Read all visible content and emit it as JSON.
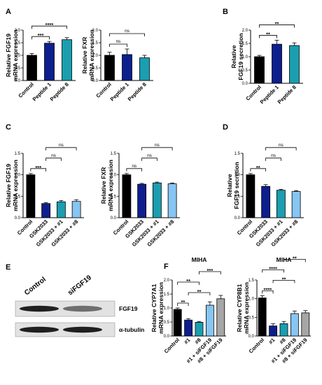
{
  "colors": {
    "Control": "#000000",
    "Peptide 1": "#0d1f8c",
    "Peptide 8": "#1a9eb0",
    "GSK2033": "#0d1f8c",
    "GSK2033 + #1": "#1a9eb0",
    "GSK2033 + #8": "#87c5f2",
    "#1": "#0d1f8c",
    "#8": "#1a9eb0",
    "#1 + siFGF19": "#87c5f2",
    "#8 + siFGF19": "#a6a6a6"
  },
  "chart_data": [
    {
      "id": "A1",
      "panel": "A",
      "type": "bar",
      "title": "",
      "ylabel": "Relative FGF19 mRNA expression",
      "categories": [
        "Control",
        "Peptide 1",
        "Peptide 8"
      ],
      "values": [
        1.0,
        1.48,
        1.62
      ],
      "errors": [
        0.07,
        0.07,
        0.08
      ],
      "ylim": [
        0,
        2.0
      ],
      "yticks": [
        "0.0",
        "0.5",
        "1.0",
        "1.5",
        "2.0"
      ],
      "brackets": [
        {
          "from": 0,
          "to": 1,
          "label": "***"
        },
        {
          "from": 0,
          "to": 2,
          "label": "****"
        }
      ]
    },
    {
      "id": "A2",
      "panel": "",
      "type": "bar",
      "title": "",
      "ylabel": "Relative FXR mRNA expression",
      "categories": [
        "Control",
        "Peptide 1",
        "Peptide 8"
      ],
      "values": [
        1.0,
        1.03,
        0.9
      ],
      "errors": [
        0.12,
        0.22,
        0.1
      ],
      "ylim": [
        0,
        2.0
      ],
      "yticks": [
        "0.0",
        "0.5",
        "1.0",
        "1.5",
        "2.0"
      ],
      "brackets": [
        {
          "from": 0,
          "to": 1,
          "label": "ns"
        },
        {
          "from": 0,
          "to": 2,
          "label": "ns"
        }
      ]
    },
    {
      "id": "B",
      "panel": "B",
      "type": "bar",
      "title": "",
      "ylabel": "Relative FGF19 secretion",
      "categories": [
        "Control",
        "Peptide 1",
        "Peptide 8"
      ],
      "values": [
        1.0,
        1.47,
        1.42
      ],
      "errors": [
        0.05,
        0.15,
        0.1
      ],
      "ylim": [
        0,
        2.0
      ],
      "yticks": [
        "0.0",
        "0.5",
        "1.0",
        "1.5",
        "2.0"
      ],
      "brackets": [
        {
          "from": 0,
          "to": 1,
          "label": "**"
        },
        {
          "from": 0,
          "to": 2,
          "label": "**"
        }
      ]
    },
    {
      "id": "C1",
      "panel": "C",
      "type": "bar",
      "title": "",
      "ylabel": "Relative FGF19 mRNA expression",
      "categories": [
        "Control",
        "GSK2033",
        "GSK2033 + #1",
        "GSK2033 + #8"
      ],
      "values": [
        1.0,
        0.33,
        0.37,
        0.38
      ],
      "errors": [
        0.03,
        0.02,
        0.03,
        0.04
      ],
      "ylim": [
        0,
        1.5
      ],
      "yticks": [
        "0.0",
        "0.5",
        "1.0",
        "1.5"
      ],
      "brackets": [
        {
          "from": 0,
          "to": 1,
          "label": "***"
        },
        {
          "from": 1,
          "to": 2,
          "label": "ns"
        },
        {
          "from": 1,
          "to": 3,
          "label": "ns"
        }
      ]
    },
    {
      "id": "C2",
      "panel": "",
      "type": "bar",
      "title": "",
      "ylabel": "Relative FXR mRNA expression",
      "categories": [
        "Control",
        "GSK2033",
        "GSK2033 + #1",
        "GSK2033 + #8"
      ],
      "values": [
        1.0,
        0.78,
        0.81,
        0.79
      ],
      "errors": [
        0.03,
        0.02,
        0.02,
        0.02
      ],
      "ylim": [
        0,
        1.5
      ],
      "yticks": [
        "0.0",
        "0.5",
        "1.0",
        "1.5"
      ],
      "brackets": [
        {
          "from": 0,
          "to": 1,
          "label": "ns"
        },
        {
          "from": 1,
          "to": 2,
          "label": "ns"
        },
        {
          "from": 1,
          "to": 3,
          "label": "ns"
        }
      ]
    },
    {
      "id": "D",
      "panel": "D",
      "type": "bar",
      "title": "",
      "ylabel": "Relative FGF19 secretion",
      "categories": [
        "Control",
        "GSK2033",
        "GSK2033 + #1",
        "GSK2033 + #8"
      ],
      "values": [
        1.0,
        0.73,
        0.64,
        0.61
      ],
      "errors": [
        0.03,
        0.04,
        0.02,
        0.02
      ],
      "ylim": [
        0,
        1.5
      ],
      "yticks": [
        "0.0",
        "0.5",
        "1.0",
        "1.5"
      ],
      "brackets": [
        {
          "from": 0,
          "to": 1,
          "label": "**"
        },
        {
          "from": 1,
          "to": 2,
          "label": "ns"
        },
        {
          "from": 1,
          "to": 3,
          "label": "ns"
        }
      ]
    },
    {
      "id": "F1",
      "panel": "F",
      "type": "bar",
      "title": "MIHA",
      "ylabel": "Relative CYP7A1 mRNA expression",
      "categories": [
        "Control",
        "#1",
        "#8",
        "#1 + siFGF19",
        "#8 + siFGF19"
      ],
      "values": [
        0.95,
        0.57,
        0.49,
        1.1,
        1.33
      ],
      "errors": [
        0.05,
        0.05,
        0.03,
        0.12,
        0.12
      ],
      "ylim": [
        0,
        2.0
      ],
      "yticks": [
        "0.0",
        "0.5",
        "1.0",
        "1.5",
        "2.0"
      ],
      "brackets": [
        {
          "from": 0,
          "to": 1,
          "label": "**"
        },
        {
          "from": 1,
          "to": 3,
          "label": "**"
        },
        {
          "from": 0,
          "to": 2,
          "label": "**"
        },
        {
          "from": 2,
          "to": 4,
          "label": "***"
        }
      ]
    },
    {
      "id": "F2",
      "panel": "",
      "type": "bar",
      "title": "MIHA",
      "ylabel": "Relative CYP8B1 mRNA expression",
      "categories": [
        "Control",
        "#1",
        "#8",
        "#1 + siFGF19",
        "#8 + siFGF19"
      ],
      "values": [
        1.02,
        0.27,
        0.33,
        0.6,
        0.62
      ],
      "errors": [
        0.06,
        0.06,
        0.06,
        0.07,
        0.06
      ],
      "ylim": [
        0,
        1.5
      ],
      "yticks": [
        "0.0",
        "0.5",
        "1.0",
        "1.5"
      ],
      "brackets": [
        {
          "from": 0,
          "to": 1,
          "label": "****"
        },
        {
          "from": 1,
          "to": 3,
          "label": "**"
        },
        {
          "from": 0,
          "to": 2,
          "label": "****"
        },
        {
          "from": 2,
          "to": 4,
          "label": "**"
        }
      ]
    }
  ],
  "western_blot": {
    "panel": "E",
    "lanes": [
      "Control",
      "siFGF19"
    ],
    "bands": [
      {
        "label": "FGF19",
        "intensity": [
          1.0,
          0.45
        ]
      },
      {
        "label": "α-tubulin",
        "intensity": [
          1.0,
          1.0
        ]
      }
    ]
  }
}
